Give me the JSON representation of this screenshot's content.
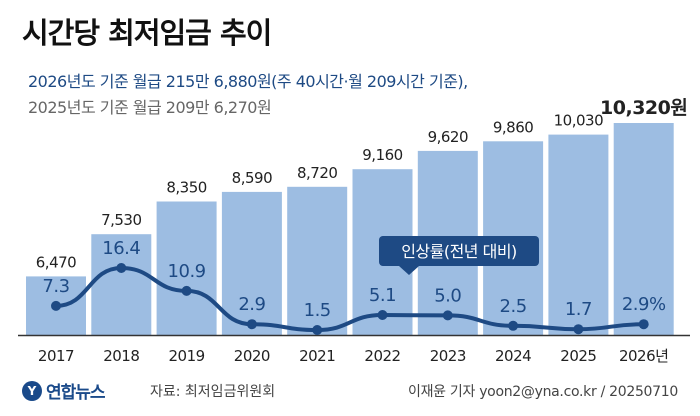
{
  "header": {
    "title": "시간당 최저임금 추이",
    "subtitle_line1": "2026년도 기준 월급 215만 6,880원(주 40시간·월 209시간 기준),",
    "subtitle_line2": "2025년도 기준 월급 209만 6,270원"
  },
  "colors": {
    "bar": "#9dbde2",
    "line": "#1e4a84",
    "title": "#111111",
    "highlight_text": "#1e4a84"
  },
  "chart_data": {
    "type": "bar",
    "categories": [
      "2017",
      "2018",
      "2019",
      "2020",
      "2021",
      "2022",
      "2023",
      "2024",
      "2025",
      "2026년"
    ],
    "series": [
      {
        "values": [
          6470,
          7530,
          8350,
          8590,
          8720,
          9160,
          9620,
          9860,
          10030,
          10320
        ],
        "labels": [
          "6,470",
          "7,530",
          "8,350",
          "8,590",
          "8,720",
          "9,160",
          "9,620",
          "9,860",
          "10,030",
          "10,320원"
        ]
      },
      {
        "name": "인상률(전년 대비)",
        "type": "line",
        "values": [
          7.3,
          16.4,
          10.9,
          2.9,
          1.5,
          5.1,
          5.0,
          2.5,
          1.7,
          2.9
        ],
        "labels": [
          "7.3",
          "16.4",
          "10.9",
          "2.9",
          "1.5",
          "5.1",
          "5.0",
          "2.5",
          "1.7",
          "2.9%"
        ]
      }
    ],
    "line_legend": "인상률(전년 대비)",
    "axis_baseline": 5000
  },
  "footer": {
    "logo_mark": "Y",
    "logo_text": "연합뉴스",
    "source": "자료: 최저임금위원회",
    "credit": "이재윤 기자  yoon2@yna.co.kr / 20250710"
  }
}
